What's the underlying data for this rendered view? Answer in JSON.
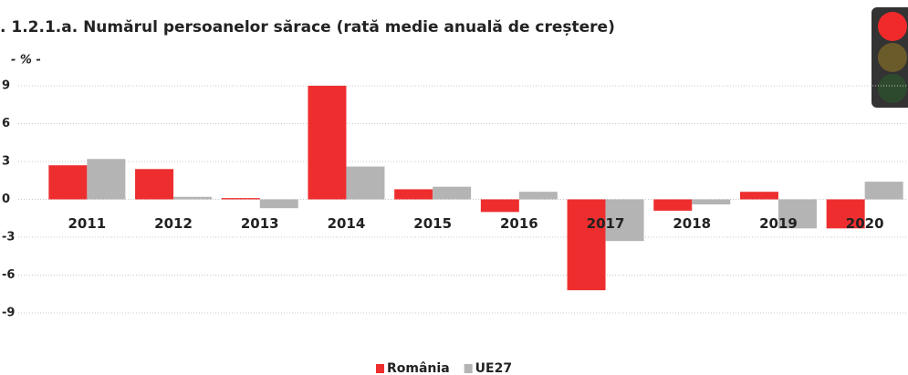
{
  "chart_data": {
    "type": "bar",
    "title": ". 1.2.1.a. Numărul persoanelor sărace (rată medie anuală de creștere)",
    "unit_label": "- % -",
    "categories": [
      "2011",
      "2012",
      "2013",
      "2014",
      "2015",
      "2016",
      "2017",
      "2018",
      "2019",
      "2020"
    ],
    "series": [
      {
        "name": "România",
        "color": "#ee2e2e",
        "values": [
          2.7,
          2.4,
          0.1,
          9.0,
          0.8,
          -1.0,
          -7.2,
          -0.9,
          0.6,
          -2.3
        ]
      },
      {
        "name": "UE27",
        "color": "#b4b4b4",
        "values": [
          3.2,
          0.2,
          -0.7,
          2.6,
          1.0,
          0.6,
          -3.3,
          -0.4,
          -2.3,
          1.4
        ]
      }
    ],
    "ylim": [
      -9,
      9
    ],
    "yticks": [
      9,
      6,
      3,
      0,
      -3,
      -6,
      -9
    ],
    "grid": true
  }
}
